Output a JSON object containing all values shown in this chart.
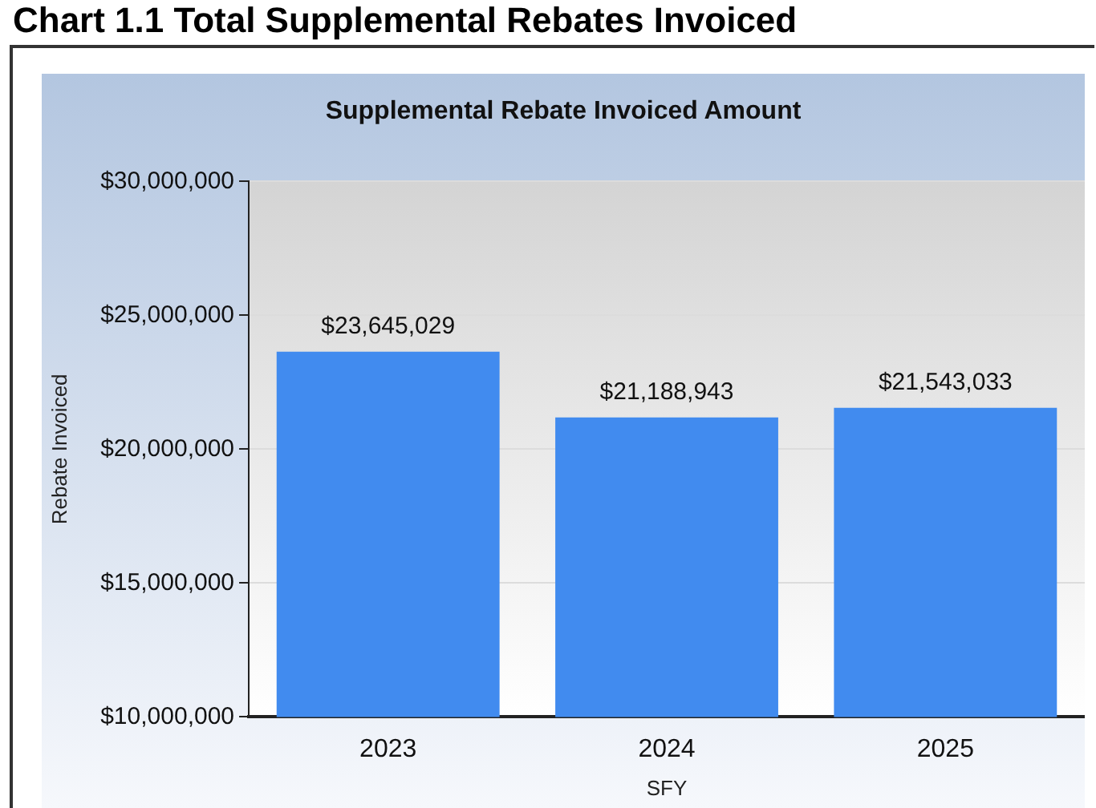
{
  "chart_data": {
    "type": "bar",
    "title": "Chart 1.1 Total Supplemental Rebates Invoiced",
    "subtitle": "Supplemental Rebate Invoiced Amount",
    "xlabel": "SFY",
    "ylabel": "Rebate Invoiced",
    "categories": [
      "2023",
      "2024",
      "2025"
    ],
    "values": [
      23645029,
      21188943,
      21543033
    ],
    "color": "#418bef",
    "ylim": [
      10000000,
      30000000
    ],
    "yticks": [
      {
        "value": 10000000,
        "label": "$10,000,000"
      },
      {
        "value": 15000000,
        "label": "$15,000,000"
      },
      {
        "value": 20000000,
        "label": "$20,000,000"
      },
      {
        "value": 25000000,
        "label": "$25,000,000"
      },
      {
        "value": 30000000,
        "label": "$30,000,000"
      }
    ],
    "grid": "y",
    "value_labels": [
      "$23,645,029",
      "$21,188,943",
      "$21,543,033"
    ]
  }
}
